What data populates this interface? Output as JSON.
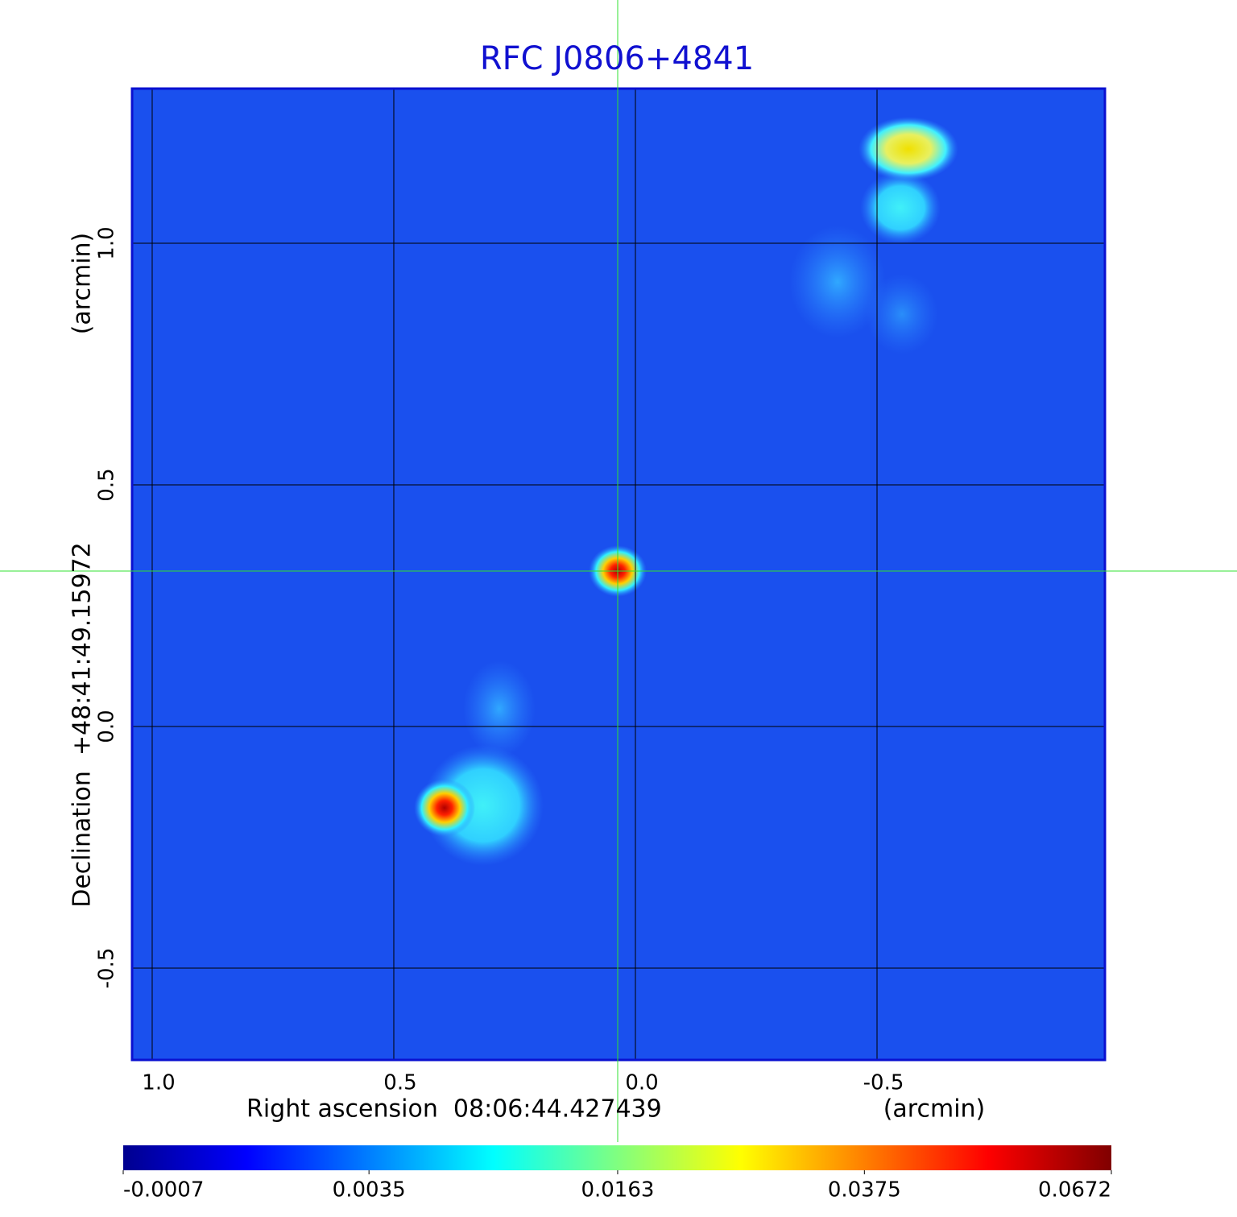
{
  "chart_data": {
    "type": "image",
    "title": "RFC J0806+4841",
    "xlabel": "Right ascension  08:06:44.427439",
    "xunit": "(arcmin)",
    "ylabel": "Declination  +48:41:49.15972",
    "yunit": "(arcmin)",
    "xlim": [
      1.0433,
      -0.9733
    ],
    "ylim": [
      -0.6917,
      1.3217
    ],
    "xticks": [
      {
        "value": 1,
        "label": "1.0"
      },
      0.5,
      {
        "value": 0,
        "label": "0.0"
      },
      -0.5
    ],
    "yticks": [
      {
        "value": 1,
        "label": "1.0"
      },
      0.5,
      {
        "value": 0,
        "label": "0.0"
      },
      -0.5
    ],
    "grid": true,
    "colorbar": {
      "lim": [
        -0.0007,
        0.0672
      ],
      "ticks": [
        -0.0007,
        0.0035,
        0.0163,
        0.0375,
        0.0672
      ],
      "scale": "sqrt",
      "colormap": "jet"
    }
  }
}
